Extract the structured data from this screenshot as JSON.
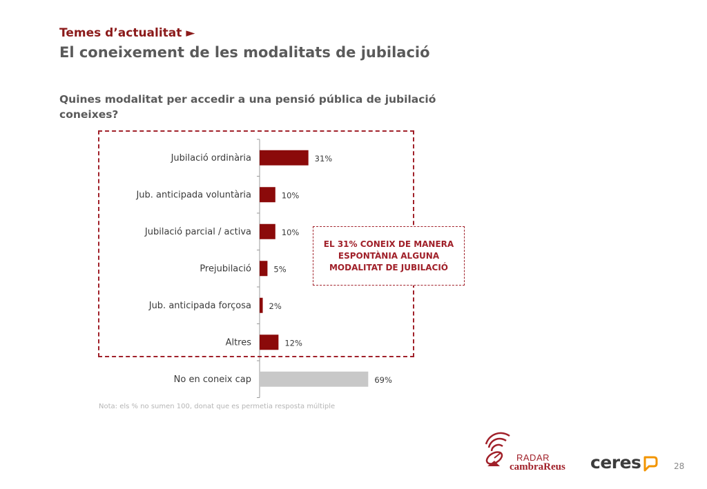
{
  "header": {
    "section": "Temes d’actualitat ►",
    "title": "El coneixement de les modalitats de jubilació"
  },
  "question": "Quines modalitat per accedir a una pensió pública de jubilació coneixes?",
  "callout": "EL 31% CONEIX DE MANERA ESPONTÀNIA ALGUNA MODALITAT DE JUBILACIÓ",
  "note": "Nota: els % no sumen 100, donat que es permetia resposta múltiple",
  "footer": {
    "radar": "RADAR",
    "cambra": "cambraReus",
    "ceres": "ceres",
    "page": "28"
  },
  "colors": {
    "accent": "#8b0a0a",
    "grey_bar": "#c8c8c8",
    "dashed": "#a02029"
  },
  "chart_data": {
    "type": "bar",
    "orientation": "horizontal",
    "categories": [
      "Jubilació ordinària",
      "Jub. anticipada voluntària",
      "Jubilació parcial / activa",
      "Prejubilació",
      "Jub. anticipada forçosa",
      "Altres",
      "No en coneix cap"
    ],
    "values": [
      31,
      10,
      10,
      5,
      2,
      12,
      69
    ],
    "labels": [
      "31%",
      "10%",
      "10%",
      "5%",
      "2%",
      "12%",
      "69%"
    ],
    "bar_colors": [
      "#8b0a0a",
      "#8b0a0a",
      "#8b0a0a",
      "#8b0a0a",
      "#8b0a0a",
      "#8b0a0a",
      "#c8c8c8"
    ],
    "unit": "%",
    "xlim": [
      0,
      100
    ]
  }
}
